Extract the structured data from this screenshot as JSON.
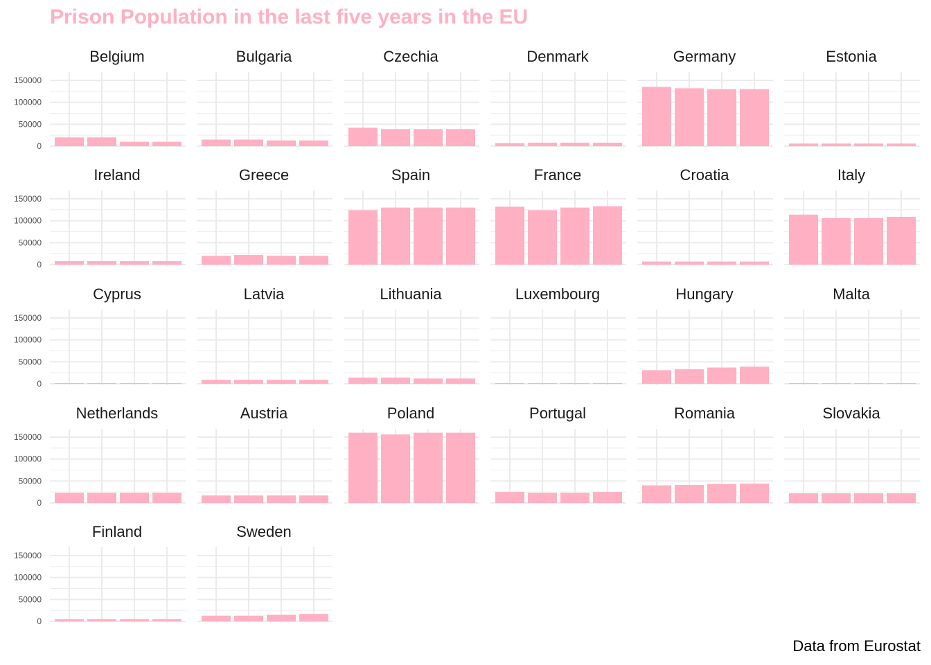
{
  "title": "Prison Population in the last five years in the EU",
  "caption": "Data from Eurostat",
  "colors": {
    "bar": "#FFB0C2",
    "title": "#FFB0C2",
    "grid": "#EBEBEB"
  },
  "chart_data": {
    "type": "bar",
    "facet_layout": "6 columns, shared y axis",
    "ylim": [
      0,
      160000
    ],
    "yticks": [
      0,
      50000,
      100000,
      150000
    ],
    "ytick_labels": [
      "0",
      "50000",
      "100000",
      "150000"
    ],
    "bars_per_panel": 4,
    "grid": true,
    "panels": [
      {
        "name": "Belgium",
        "values": [
          20000,
          20000,
          10000,
          10000
        ]
      },
      {
        "name": "Bulgaria",
        "values": [
          15000,
          15000,
          13000,
          13000
        ]
      },
      {
        "name": "Czechia",
        "values": [
          42000,
          39000,
          39000,
          39000
        ]
      },
      {
        "name": "Denmark",
        "values": [
          7000,
          8000,
          8000,
          8000
        ]
      },
      {
        "name": "Germany",
        "values": [
          135000,
          132000,
          130000,
          130000
        ]
      },
      {
        "name": "Estonia",
        "values": [
          6000,
          6000,
          6000,
          6000
        ]
      },
      {
        "name": "Ireland",
        "values": [
          8000,
          8000,
          8000,
          8000
        ]
      },
      {
        "name": "Greece",
        "values": [
          20000,
          22000,
          20000,
          20000
        ]
      },
      {
        "name": "Spain",
        "values": [
          124000,
          130000,
          130000,
          130000
        ]
      },
      {
        "name": "France",
        "values": [
          132000,
          124000,
          130000,
          133000
        ]
      },
      {
        "name": "Croatia",
        "values": [
          7000,
          7000,
          7000,
          7000
        ]
      },
      {
        "name": "Italy",
        "values": [
          114000,
          106000,
          106000,
          109000
        ]
      },
      {
        "name": "Cyprus",
        "values": [
          1000,
          1000,
          1000,
          1000
        ]
      },
      {
        "name": "Latvia",
        "values": [
          9000,
          9000,
          9000,
          9000
        ]
      },
      {
        "name": "Lithuania",
        "values": [
          14000,
          14000,
          12000,
          12000
        ]
      },
      {
        "name": "Luxembourg",
        "values": [
          1000,
          1000,
          1000,
          1000
        ]
      },
      {
        "name": "Hungary",
        "values": [
          31000,
          33000,
          37000,
          39000
        ]
      },
      {
        "name": "Malta",
        "values": [
          1500,
          1500,
          1500,
          1500
        ]
      },
      {
        "name": "Netherlands",
        "values": [
          23000,
          23000,
          23000,
          23000
        ]
      },
      {
        "name": "Austria",
        "values": [
          17000,
          17000,
          17000,
          17000
        ]
      },
      {
        "name": "Poland",
        "values": [
          160000,
          156000,
          160000,
          160000
        ]
      },
      {
        "name": "Portugal",
        "values": [
          25000,
          23000,
          23000,
          25000
        ]
      },
      {
        "name": "Romania",
        "values": [
          40000,
          41000,
          43000,
          44000
        ]
      },
      {
        "name": "Slovakia",
        "values": [
          22000,
          22000,
          22000,
          22000
        ]
      },
      {
        "name": "Finland",
        "values": [
          5000,
          5000,
          5000,
          5000
        ]
      },
      {
        "name": "Sweden",
        "values": [
          13000,
          13000,
          15000,
          17000
        ]
      }
    ]
  }
}
